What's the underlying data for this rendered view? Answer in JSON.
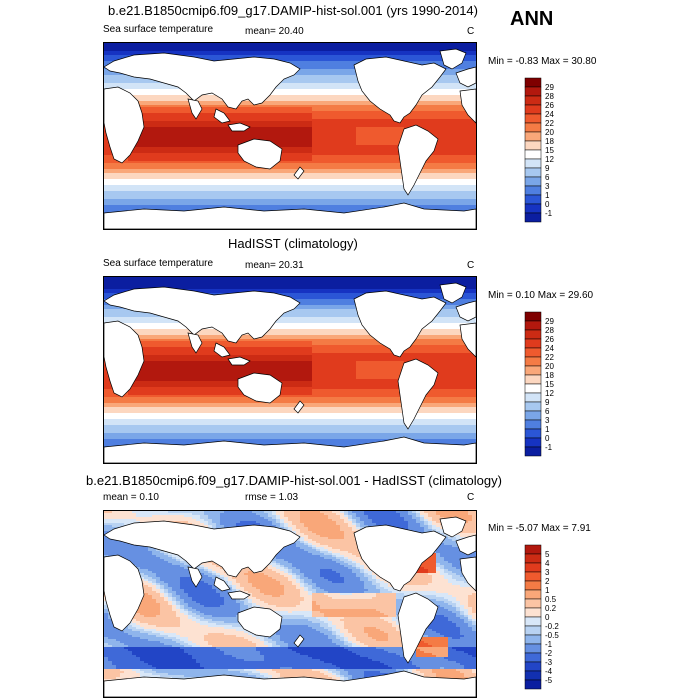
{
  "panels": [
    {
      "title": "b.e21.B1850cmip6.f09_g17.DAMIP-hist-sol.001 (yrs 1990-2014)",
      "left_label": "Sea surface temperature",
      "mean_text": "mean=  20.40",
      "units": "C",
      "minmax": "Min =  -0.83 Max =  30.80",
      "palette": "temp",
      "colorbar": {
        "labels": [
          "29",
          "28",
          "26",
          "24",
          "22",
          "20",
          "18",
          "15",
          "12",
          "9",
          "6",
          "3",
          "1",
          "0",
          "-1"
        ],
        "colors": [
          "#7f0000",
          "#b2180e",
          "#cc2b14",
          "#e03b1d",
          "#ef5a2e",
          "#f47b45",
          "#f9a779",
          "#fcd7c0",
          "#ffffff",
          "#d2e4f7",
          "#a7c8f0",
          "#7aa6e8",
          "#4f7fe0",
          "#2b56d6",
          "#1633c2",
          "#0b1ea0"
        ]
      },
      "highlight": "ANN"
    },
    {
      "title": "HadISST (climatology)",
      "left_label": "Sea surface temperature",
      "mean_text": "mean=  20.31",
      "units": "C",
      "minmax": "Min =   0.10 Max =  29.60",
      "palette": "temp",
      "colorbar": {
        "labels": [
          "29",
          "28",
          "26",
          "24",
          "22",
          "20",
          "18",
          "15",
          "12",
          "9",
          "6",
          "3",
          "1",
          "0",
          "-1"
        ],
        "colors": [
          "#7f0000",
          "#b2180e",
          "#cc2b14",
          "#e03b1d",
          "#ef5a2e",
          "#f47b45",
          "#f9a779",
          "#fcd7c0",
          "#ffffff",
          "#d2e4f7",
          "#a7c8f0",
          "#7aa6e8",
          "#4f7fe0",
          "#2b56d6",
          "#1633c2",
          "#0b1ea0"
        ]
      }
    },
    {
      "title": "b.e21.B1850cmip6.f09_g17.DAMIP-hist-sol.001 - HadISST (climatology)",
      "left_label": "mean =   0.10",
      "mean_text": "rmse =   1.03",
      "units": "C",
      "minmax": "Min =  -5.07 Max =   7.91",
      "palette": "diff",
      "colorbar": {
        "labels": [
          "5",
          "4",
          "3",
          "2",
          "1",
          "0.5",
          "0.2",
          "0",
          "-0.2",
          "-0.5",
          "-1",
          "-2",
          "-3",
          "-4",
          "-5"
        ],
        "colors": [
          "#b2180e",
          "#cc2b14",
          "#e03b1d",
          "#ef5a2e",
          "#f47b45",
          "#f9a779",
          "#fbc4a4",
          "#fde2d2",
          "#d8e7f8",
          "#b8d2f2",
          "#8fb5ec",
          "#6690e2",
          "#3f69d8",
          "#2245c6",
          "#1230b0",
          "#0b1ea0"
        ]
      }
    }
  ],
  "season": "ANN"
}
